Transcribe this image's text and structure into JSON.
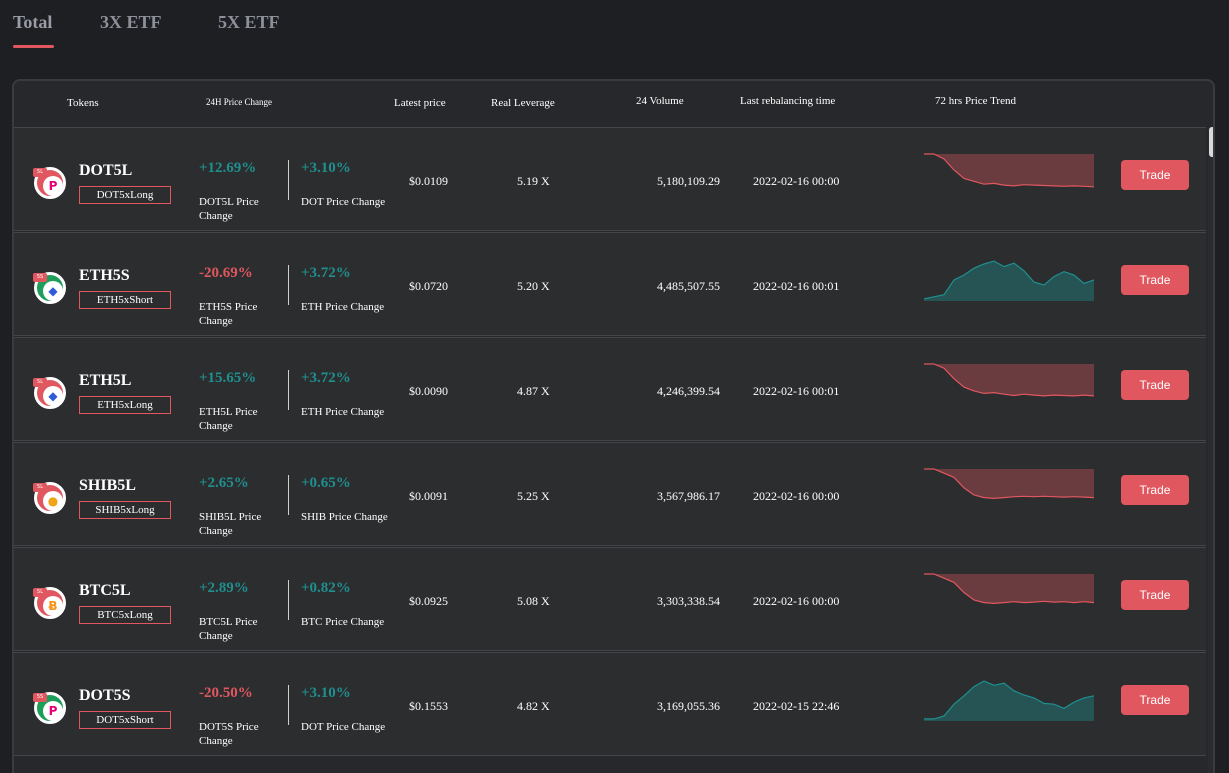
{
  "tabs": [
    {
      "label": "Total"
    },
    {
      "label": "3X ETF"
    },
    {
      "label": "5X ETF"
    }
  ],
  "columns": {
    "tokens": "Tokens",
    "change": "24H Price Change",
    "latest_price": "Latest price",
    "real_leverage": "Real Leverage",
    "volume": "24 Volume",
    "rebalance": "Last rebalancing time",
    "trend": "72 hrs Price Trend"
  },
  "colors": {
    "up": "#1f8f8f",
    "down": "#e0575f",
    "accent": "#e0575f"
  },
  "rows": [
    {
      "symbol": "DOT5L",
      "subtitle": "DOT5xLong",
      "icon": "polkadot-icon",
      "badge": "5L",
      "change1": "+12.69%",
      "change1_dir": "up",
      "change1_label": "DOT5L Price Change",
      "change2": "+3.10%",
      "change2_dir": "up",
      "change2_label": "DOT Price Change",
      "price": "$0.0109",
      "leverage": "5.19 X",
      "volume": "5,180,109.29",
      "time": "2022-02-16 00:00",
      "trend_color": "down",
      "trend": [
        1,
        1,
        0.88,
        0.62,
        0.42,
        0.35,
        0.28,
        0.3,
        0.26,
        0.24,
        0.27,
        0.26,
        0.25,
        0.24,
        0.23,
        0.24,
        0.23,
        0.22
      ],
      "trade_label": "Trade"
    },
    {
      "symbol": "ETH5S",
      "subtitle": "ETH5xShort",
      "icon": "ethereum-icon",
      "badge": "5S",
      "change1": "-20.69%",
      "change1_dir": "down",
      "change1_label": "ETH5S Price Change",
      "change2": "+3.72%",
      "change2_dir": "up",
      "change2_label": "ETH Price Change",
      "price": "$0.0720",
      "leverage": "5.20 X",
      "volume": "4,485,507.55",
      "time": "2022-02-16 00:01",
      "trend_color": "up",
      "trend": [
        0.05,
        0.1,
        0.15,
        0.5,
        0.62,
        0.78,
        0.88,
        0.95,
        0.82,
        0.9,
        0.72,
        0.45,
        0.38,
        0.58,
        0.7,
        0.62,
        0.42,
        0.5
      ],
      "trade_label": "Trade"
    },
    {
      "symbol": "ETH5L",
      "subtitle": "ETH5xLong",
      "icon": "ethereum-icon",
      "badge": "5L",
      "change1": "+15.65%",
      "change1_dir": "up",
      "change1_label": "ETH5L Price Change",
      "change2": "+3.72%",
      "change2_dir": "up",
      "change2_label": "ETH Price Change",
      "price": "$0.0090",
      "leverage": "4.87 X",
      "volume": "4,246,399.54",
      "time": "2022-02-16 00:01",
      "trend_color": "down",
      "trend": [
        1,
        1,
        0.9,
        0.65,
        0.45,
        0.36,
        0.3,
        0.32,
        0.28,
        0.25,
        0.28,
        0.26,
        0.24,
        0.26,
        0.25,
        0.24,
        0.26,
        0.24
      ],
      "trade_label": "Trade"
    },
    {
      "symbol": "SHIB5L",
      "subtitle": "SHIB5xLong",
      "icon": "shiba-inu-icon",
      "badge": "5L",
      "change1": "+2.65%",
      "change1_dir": "up",
      "change1_label": "SHIB5L Price Change",
      "change2": "+0.65%",
      "change2_dir": "up",
      "change2_label": "SHIB Price Change",
      "price": "$0.0091",
      "leverage": "5.25 X",
      "volume": "3,567,986.17",
      "time": "2022-02-16 00:00",
      "trend_color": "down",
      "trend": [
        1,
        1,
        0.9,
        0.8,
        0.55,
        0.38,
        0.32,
        0.3,
        0.32,
        0.34,
        0.35,
        0.34,
        0.35,
        0.34,
        0.33,
        0.34,
        0.33,
        0.32
      ],
      "trade_label": "Trade"
    },
    {
      "symbol": "BTC5L",
      "subtitle": "BTC5xLong",
      "icon": "bitcoin-icon",
      "badge": "5L",
      "change1": "+2.89%",
      "change1_dir": "up",
      "change1_label": "BTC5L Price Change",
      "change2": "+0.82%",
      "change2_dir": "up",
      "change2_label": "BTC Price Change",
      "price": "$0.0925",
      "leverage": "5.08 X",
      "volume": "3,303,338.54",
      "time": "2022-02-16 00:00",
      "trend_color": "down",
      "trend": [
        1,
        1,
        0.9,
        0.8,
        0.56,
        0.38,
        0.32,
        0.3,
        0.32,
        0.34,
        0.32,
        0.33,
        0.35,
        0.33,
        0.34,
        0.32,
        0.34,
        0.32
      ],
      "trade_label": "Trade"
    },
    {
      "symbol": "DOT5S",
      "subtitle": "DOT5xShort",
      "icon": "polkadot-icon",
      "badge": "5S",
      "change1": "-20.50%",
      "change1_dir": "down",
      "change1_label": "DOT5S Price Change",
      "change2": "+3.10%",
      "change2_dir": "up",
      "change2_label": "DOT Price Change",
      "price": "$0.1553",
      "leverage": "4.82 X",
      "volume": "3,169,055.36",
      "time": "2022-02-15 22:46",
      "trend_color": "up",
      "trend": [
        0.05,
        0.05,
        0.12,
        0.4,
        0.6,
        0.82,
        0.95,
        0.85,
        0.9,
        0.72,
        0.62,
        0.55,
        0.42,
        0.4,
        0.3,
        0.45,
        0.55,
        0.6
      ],
      "trade_label": "Trade"
    }
  ]
}
